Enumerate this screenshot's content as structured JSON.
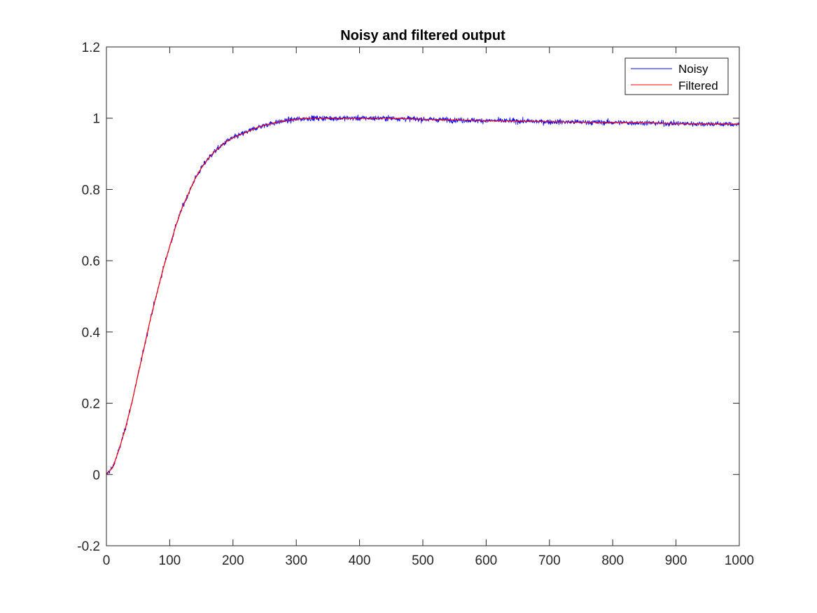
{
  "chart_data": {
    "type": "line",
    "title": "Noisy and filtered output",
    "xlabel": "",
    "ylabel": "",
    "xlim": [
      0,
      1000
    ],
    "ylim": [
      -0.2,
      1.2
    ],
    "xticks": [
      0,
      100,
      200,
      300,
      400,
      500,
      600,
      700,
      800,
      900,
      1000
    ],
    "yticks": [
      -0.2,
      0,
      0.2,
      0.4,
      0.6,
      0.8,
      1,
      1.2
    ],
    "xtick_labels": [
      "0",
      "100",
      "200",
      "300",
      "400",
      "500",
      "600",
      "700",
      "800",
      "900",
      "1000"
    ],
    "ytick_labels": [
      "-0.2",
      "0",
      "0.2",
      "0.4",
      "0.6",
      "0.8",
      "1",
      "1.2"
    ],
    "grid": false,
    "legend_position": "top-right",
    "noise_amplitude": 0.012,
    "series": [
      {
        "name": "Noisy",
        "color": "#0000ff",
        "noisy": true,
        "x": [
          0,
          10,
          20,
          30,
          40,
          50,
          60,
          70,
          80,
          90,
          100,
          110,
          120,
          130,
          140,
          150,
          160,
          170,
          180,
          190,
          200,
          220,
          240,
          260,
          280,
          300,
          320,
          340,
          360,
          380,
          400,
          450,
          500,
          550,
          600,
          650,
          700,
          750,
          800,
          850,
          900,
          950,
          1000
        ],
        "y": [
          0,
          0.02,
          0.07,
          0.13,
          0.2,
          0.28,
          0.36,
          0.44,
          0.51,
          0.58,
          0.64,
          0.7,
          0.75,
          0.79,
          0.83,
          0.86,
          0.885,
          0.905,
          0.92,
          0.935,
          0.945,
          0.96,
          0.975,
          0.985,
          0.992,
          0.997,
          1.0,
          1.0,
          1.0,
          1.0,
          1.0,
          1.0,
          0.997,
          0.995,
          0.993,
          0.992,
          0.99,
          0.989,
          0.988,
          0.987,
          0.985,
          0.984,
          0.983
        ]
      },
      {
        "name": "Filtered",
        "color": "#ff0000",
        "noisy": false,
        "x": [
          0,
          10,
          20,
          30,
          40,
          50,
          60,
          70,
          80,
          90,
          100,
          110,
          120,
          130,
          140,
          150,
          160,
          170,
          180,
          190,
          200,
          220,
          240,
          260,
          280,
          300,
          320,
          340,
          360,
          380,
          400,
          450,
          500,
          550,
          600,
          650,
          700,
          750,
          800,
          850,
          900,
          950,
          1000
        ],
        "y": [
          0,
          0.02,
          0.07,
          0.13,
          0.2,
          0.28,
          0.36,
          0.44,
          0.51,
          0.58,
          0.64,
          0.7,
          0.75,
          0.79,
          0.83,
          0.86,
          0.885,
          0.905,
          0.92,
          0.935,
          0.945,
          0.96,
          0.975,
          0.985,
          0.992,
          0.997,
          1.0,
          1.0,
          1.0,
          1.0,
          1.0,
          1.0,
          0.997,
          0.995,
          0.993,
          0.992,
          0.99,
          0.989,
          0.988,
          0.987,
          0.985,
          0.984,
          0.983
        ]
      }
    ]
  }
}
